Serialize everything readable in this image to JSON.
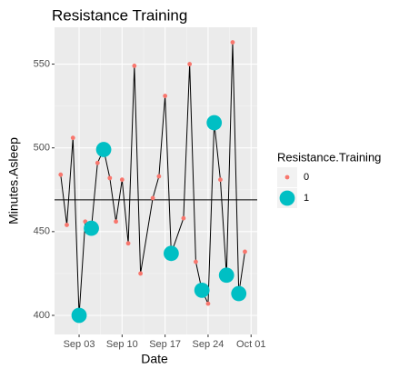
{
  "chart_data": {
    "type": "line",
    "title": "Resistance Training",
    "x_label": "Date",
    "y_label": "Minutes.Asleep",
    "x": [
      "08-31",
      "09-01",
      "09-02",
      "09-03",
      "09-04",
      "09-05",
      "09-06",
      "09-07",
      "09-08",
      "09-09",
      "09-10",
      "09-11",
      "09-12",
      "09-13",
      "09-15",
      "09-16",
      "09-17",
      "09-18",
      "09-20",
      "09-21",
      "09-22",
      "09-23",
      "09-24",
      "09-25",
      "09-26",
      "09-27",
      "09-28",
      "09-29",
      "09-30"
    ],
    "values": [
      484,
      454,
      506,
      400,
      456,
      452,
      491,
      499,
      482,
      456,
      481,
      443,
      549,
      425,
      470,
      483,
      531,
      437,
      458,
      550,
      432,
      415,
      407,
      515,
      481,
      424,
      563,
      413,
      438
    ],
    "group": [
      0,
      0,
      0,
      1,
      0,
      1,
      0,
      1,
      0,
      0,
      0,
      0,
      0,
      0,
      0,
      0,
      0,
      1,
      0,
      0,
      0,
      1,
      0,
      1,
      0,
      1,
      0,
      1,
      0
    ],
    "hline": 469,
    "line_color": "#000000",
    "xlim": [
      "08-30",
      "10-02"
    ],
    "xticks": [
      {
        "value": "09-03",
        "label": "Sep 03"
      },
      {
        "value": "09-10",
        "label": "Sep 10"
      },
      {
        "value": "09-17",
        "label": "Sep 17"
      },
      {
        "value": "09-24",
        "label": "Sep 24"
      },
      {
        "value": "10-01",
        "label": "Oct 01"
      }
    ],
    "ylim": [
      388.6,
      572
    ],
    "yticks": [
      400,
      450,
      500,
      550
    ],
    "grid": true,
    "legend": {
      "title": "Resistance.Training",
      "position": "right",
      "entries": [
        {
          "label": "0",
          "group": 0,
          "color": "#f8766d"
        },
        {
          "label": "1",
          "group": 1,
          "color": "#00bfc4"
        }
      ]
    }
  }
}
